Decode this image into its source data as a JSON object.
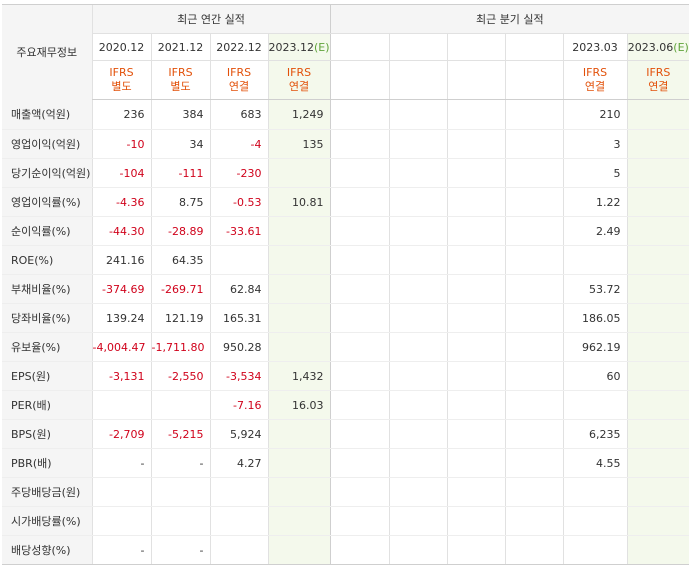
{
  "header": {
    "row_label": "주요재무정보",
    "annual_title": "최근 연간 실적",
    "quarter_title": "최근 분기 실적"
  },
  "annual_periods": [
    {
      "label": "2020.12",
      "est": "",
      "acct": "IFRS",
      "basis": "별도"
    },
    {
      "label": "2021.12",
      "est": "",
      "acct": "IFRS",
      "basis": "별도"
    },
    {
      "label": "2022.12",
      "est": "",
      "acct": "IFRS",
      "basis": "연결"
    },
    {
      "label": "2023.12",
      "est": "(E)",
      "acct": "IFRS",
      "basis": "연결"
    }
  ],
  "quarter_periods": [
    {
      "label": "",
      "est": "",
      "acct": "",
      "basis": ""
    },
    {
      "label": "",
      "est": "",
      "acct": "",
      "basis": ""
    },
    {
      "label": "",
      "est": "",
      "acct": "",
      "basis": ""
    },
    {
      "label": "",
      "est": "",
      "acct": "",
      "basis": ""
    },
    {
      "label": "2023.03",
      "est": "",
      "acct": "IFRS",
      "basis": "연결"
    },
    {
      "label": "2023.06",
      "est": "(E)",
      "acct": "IFRS",
      "basis": "연결"
    }
  ],
  "rows": [
    {
      "label": "매출액(억원)",
      "values": [
        "236",
        "384",
        "683",
        "1,249",
        "",
        "",
        "",
        "",
        "210",
        ""
      ]
    },
    {
      "label": "영업이익(억원)",
      "values": [
        "-10",
        "34",
        "-4",
        "135",
        "",
        "",
        "",
        "",
        "3",
        ""
      ]
    },
    {
      "label": "당기순이익(억원)",
      "values": [
        "-104",
        "-111",
        "-230",
        "",
        "",
        "",
        "",
        "",
        "5",
        ""
      ]
    },
    {
      "label": "영업이익률(%)",
      "values": [
        "-4.36",
        "8.75",
        "-0.53",
        "10.81",
        "",
        "",
        "",
        "",
        "1.22",
        ""
      ]
    },
    {
      "label": "순이익률(%)",
      "values": [
        "-44.30",
        "-28.89",
        "-33.61",
        "",
        "",
        "",
        "",
        "",
        "2.49",
        ""
      ]
    },
    {
      "label": "ROE(%)",
      "values": [
        "241.16",
        "64.35",
        "",
        "",
        "",
        "",
        "",
        "",
        "",
        ""
      ]
    },
    {
      "label": "부채비율(%)",
      "values": [
        "-374.69",
        "-269.71",
        "62.84",
        "",
        "",
        "",
        "",
        "",
        "53.72",
        ""
      ]
    },
    {
      "label": "당좌비율(%)",
      "values": [
        "139.24",
        "121.19",
        "165.31",
        "",
        "",
        "",
        "",
        "",
        "186.05",
        ""
      ]
    },
    {
      "label": "유보율(%)",
      "values": [
        "-4,004.47",
        "-1,711.80",
        "950.28",
        "",
        "",
        "",
        "",
        "",
        "962.19",
        ""
      ]
    },
    {
      "label": "EPS(원)",
      "values": [
        "-3,131",
        "-2,550",
        "-3,534",
        "1,432",
        "",
        "",
        "",
        "",
        "60",
        ""
      ]
    },
    {
      "label": "PER(배)",
      "values": [
        "",
        "",
        "-7.16",
        "16.03",
        "",
        "",
        "",
        "",
        "",
        ""
      ]
    },
    {
      "label": "BPS(원)",
      "values": [
        "-2,709",
        "-5,215",
        "5,924",
        "",
        "",
        "",
        "",
        "",
        "6,235",
        ""
      ]
    },
    {
      "label": "PBR(배)",
      "values": [
        "-",
        "-",
        "4.27",
        "",
        "",
        "",
        "",
        "",
        "4.55",
        ""
      ]
    },
    {
      "label": "주당배당금(원)",
      "values": [
        "",
        "",
        "",
        "",
        "",
        "",
        "",
        "",
        "",
        ""
      ]
    },
    {
      "label": "시가배당률(%)",
      "values": [
        "",
        "",
        "",
        "",
        "",
        "",
        "",
        "",
        "",
        ""
      ]
    },
    {
      "label": "배당성향(%)",
      "values": [
        "-",
        "-",
        "",
        "",
        "",
        "",
        "",
        "",
        "",
        ""
      ]
    }
  ],
  "colors": {
    "negative": "#d0021b",
    "estimate_bg": "#f4f9ec",
    "estimate_mark": "#5fa33a",
    "ifrs_label": "#e2510a"
  }
}
